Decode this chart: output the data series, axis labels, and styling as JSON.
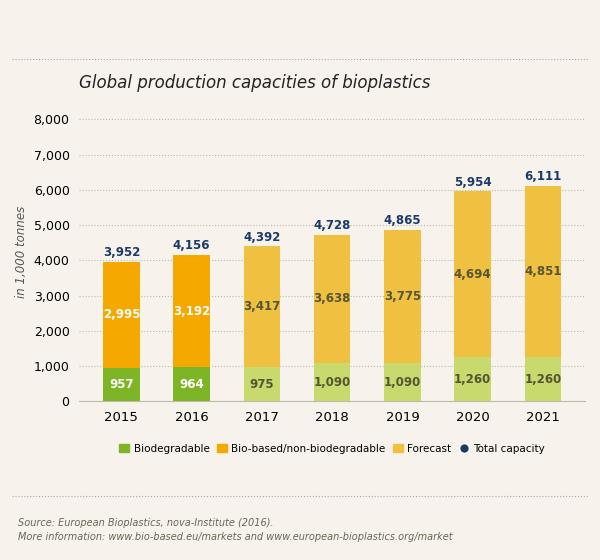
{
  "title": "Global production capacities of bioplastics",
  "ylabel": "in 1,000 tonnes",
  "years": [
    "2015",
    "2016",
    "2017",
    "2018",
    "2019",
    "2020",
    "2021"
  ],
  "biodegradable": [
    957,
    964,
    975,
    1090,
    1090,
    1260,
    1260
  ],
  "bio_based": [
    2995,
    3192,
    3417,
    3638,
    3775,
    4694,
    4851
  ],
  "total_capacity": [
    3952,
    4156,
    4392,
    4728,
    4865,
    5954,
    6111
  ],
  "actual_idx": [
    0,
    1
  ],
  "color_biodegradable_actual": "#7db526",
  "color_bio_based_actual": "#f5a800",
  "color_biodegradable_forecast": "#c8d96e",
  "color_bio_based_forecast": "#f0c040",
  "color_total_label": "#1a3a6b",
  "color_label_actual": "#ffffff",
  "color_label_forecast": "#555533",
  "background_color": "#f7f3ec",
  "ylim": [
    0,
    8500
  ],
  "yticks": [
    0,
    1000,
    2000,
    3000,
    4000,
    5000,
    6000,
    7000,
    8000
  ],
  "bar_width": 0.52,
  "label_fontsize": 8.5,
  "total_label_fontsize": 8.5,
  "source_line1": "Source: European Bioplastics, nova-Institute (2016).",
  "source_line2": "More information: www.bio-based.eu/markets and www.european-bioplastics.org/market",
  "legend_labels": [
    "Biodegradable",
    "Bio-based/non-biodegradable",
    "Forecast",
    "Total capacity"
  ]
}
